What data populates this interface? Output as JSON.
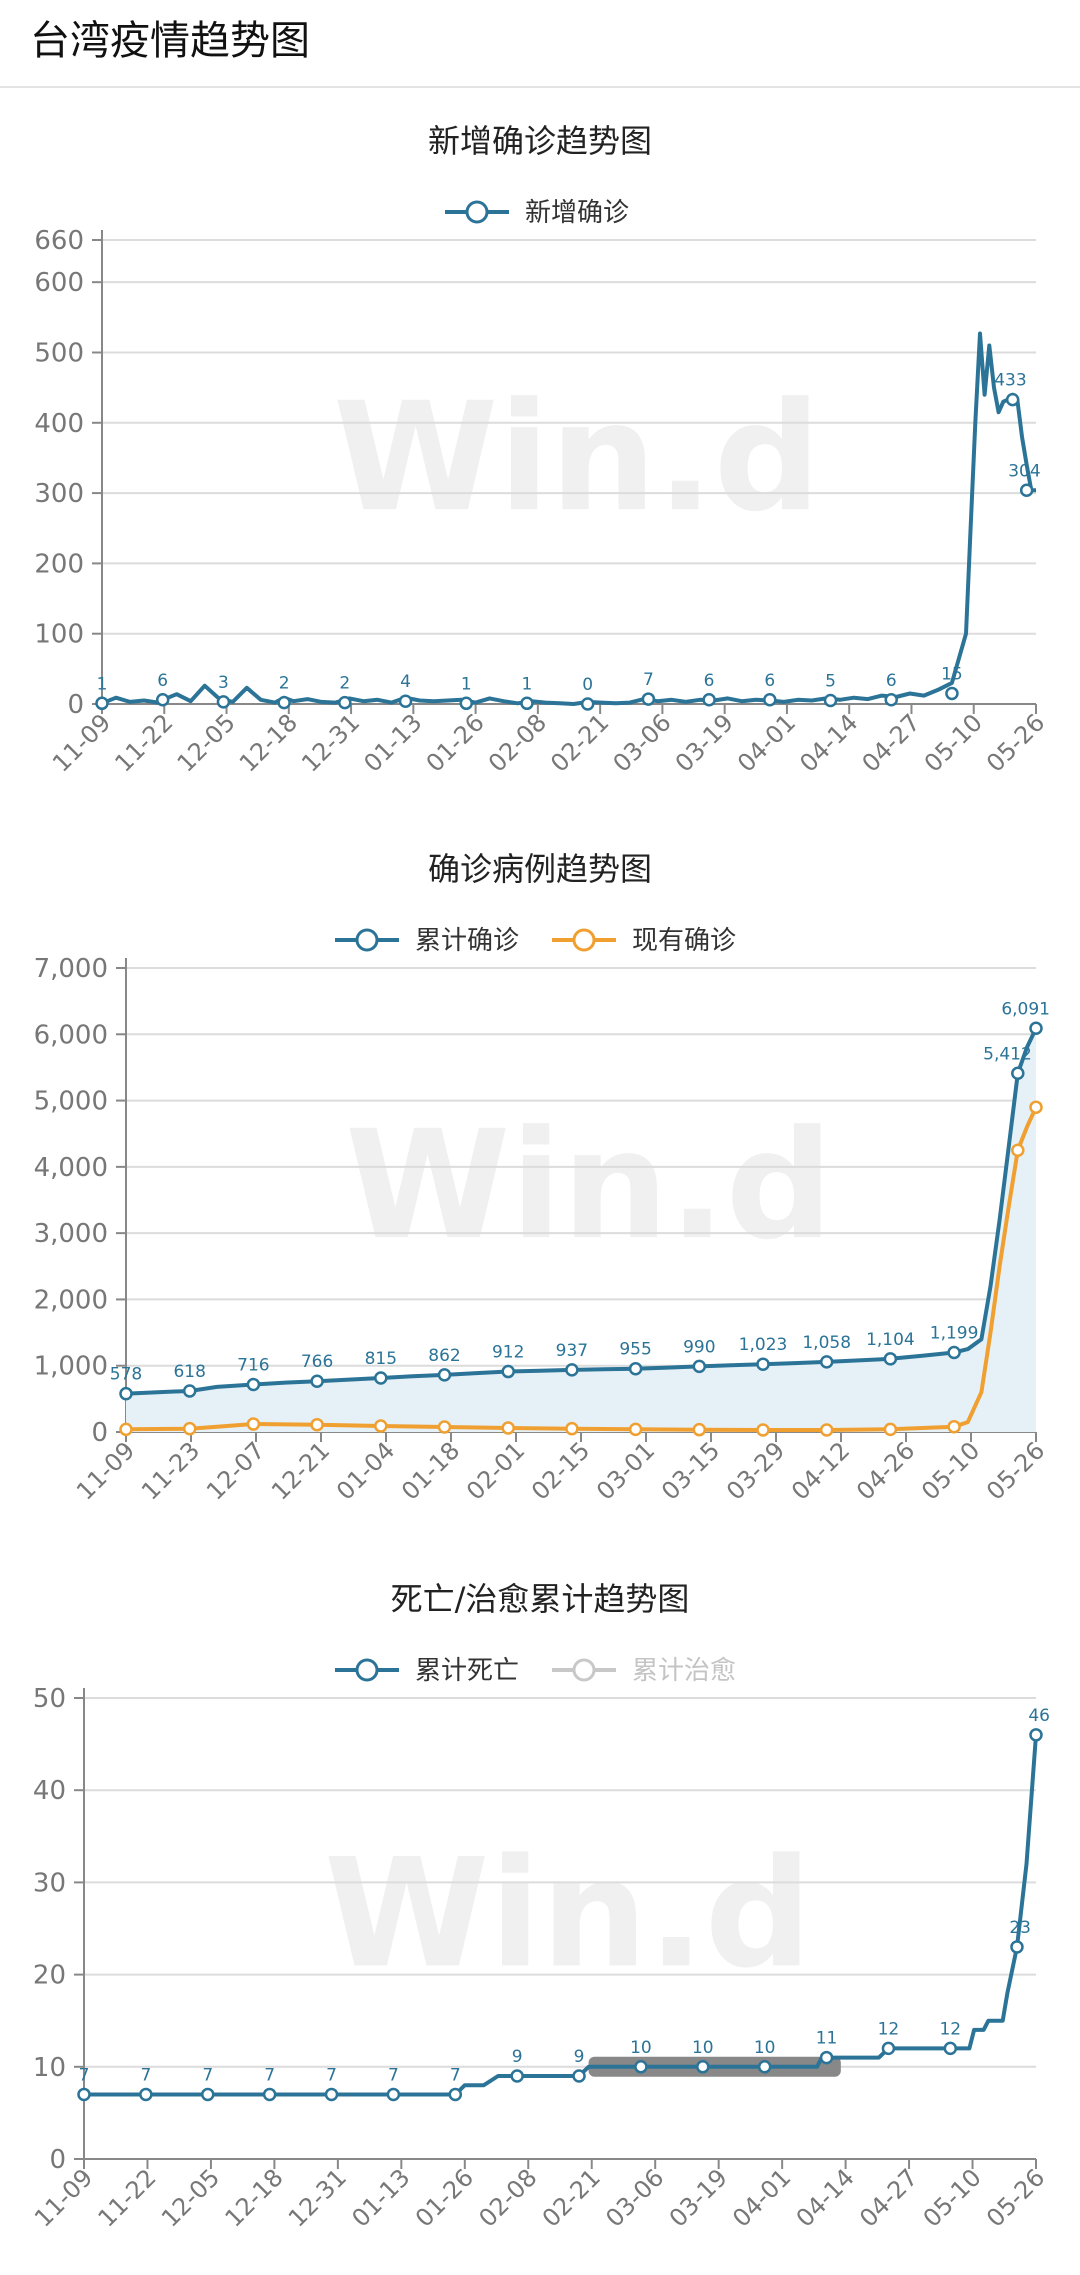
{
  "header": {
    "title": "台湾疫情趋势图"
  },
  "watermark": "Win.d",
  "colors": {
    "blue": "#2b7497",
    "orange": "#f0a030",
    "grey": "#c8c8c8",
    "area": "#e6f0f7",
    "grid": "#dcdcdc"
  },
  "chart_data": [
    {
      "type": "line",
      "title": "新增确诊趋势图",
      "legend": {
        "placement": "top-center",
        "entries": [
          {
            "name": "新增确诊",
            "color": "#2b7497",
            "active": true
          }
        ]
      },
      "x_ticks": [
        "11-09",
        "11-22",
        "12-05",
        "12-18",
        "12-31",
        "01-13",
        "01-26",
        "02-08",
        "02-21",
        "03-06",
        "03-19",
        "04-01",
        "04-14",
        "04-27",
        "05-10",
        "05-26"
      ],
      "y_ticks": [
        0,
        100,
        200,
        300,
        400,
        500,
        600,
        660
      ],
      "ylim": [
        0,
        660
      ],
      "grid": true,
      "series": [
        {
          "name": "新增确诊",
          "color": "#2b7497",
          "x": [
            0,
            3,
            6,
            9,
            12,
            13,
            16,
            19,
            22,
            25,
            28,
            31,
            34,
            37,
            39,
            41,
            44,
            47,
            50,
            53,
            56,
            59,
            62,
            65,
            68,
            71,
            74,
            77,
            80,
            83,
            86,
            89,
            92,
            95,
            98,
            101,
            104,
            107,
            110,
            113,
            116,
            119,
            122,
            125,
            128,
            131,
            134,
            137,
            140,
            143,
            146,
            149,
            152,
            155,
            158,
            161,
            164,
            167,
            170,
            173,
            176,
            179,
            182,
            185,
            186,
            187,
            188,
            189,
            190,
            191,
            192,
            193,
            194,
            195,
            196,
            197,
            198,
            199,
            200
          ],
          "values": [
            1,
            9,
            3,
            5,
            2,
            6,
            14,
            4,
            26,
            8,
            3,
            23,
            6,
            2,
            9,
            4,
            7,
            3,
            2,
            8,
            4,
            6,
            2,
            9,
            5,
            4,
            5,
            6,
            2,
            8,
            4,
            1,
            4,
            2,
            1,
            0,
            3,
            2,
            1,
            2,
            7,
            4,
            6,
            3,
            6,
            5,
            8,
            4,
            6,
            5,
            3,
            6,
            5,
            8,
            6,
            9,
            7,
            12,
            10,
            15,
            12,
            20,
            30,
            100,
            250,
            400,
            527,
            440,
            510,
            450,
            415,
            430,
            433,
            440,
            433,
            380,
            340,
            304,
            304
          ],
          "points": [
            {
              "x": 0,
              "y": 1,
              "label": "1"
            },
            {
              "x": 13,
              "y": 6,
              "label": "6"
            },
            {
              "x": 26,
              "y": 3,
              "label": "3"
            },
            {
              "x": 39,
              "y": 2,
              "label": "2"
            },
            {
              "x": 52,
              "y": 2,
              "label": "2"
            },
            {
              "x": 65,
              "y": 4,
              "label": "4"
            },
            {
              "x": 78,
              "y": 1,
              "label": "1"
            },
            {
              "x": 91,
              "y": 1,
              "label": "1"
            },
            {
              "x": 104,
              "y": 0,
              "label": "0"
            },
            {
              "x": 117,
              "y": 7,
              "label": "7"
            },
            {
              "x": 130,
              "y": 6,
              "label": "6"
            },
            {
              "x": 143,
              "y": 6,
              "label": "6"
            },
            {
              "x": 156,
              "y": 5,
              "label": "5"
            },
            {
              "x": 169,
              "y": 6,
              "label": "6"
            },
            {
              "x": 182,
              "y": 15,
              "label": "15"
            },
            {
              "x": 195,
              "y": 433,
              "label": "433"
            },
            {
              "x": 198,
              "y": 304,
              "label": "304"
            }
          ]
        }
      ]
    },
    {
      "type": "area",
      "title": "确诊病例趋势图",
      "legend": {
        "placement": "top-center",
        "entries": [
          {
            "name": "累计确诊",
            "color": "#2b7497",
            "active": true
          },
          {
            "name": "现有确诊",
            "color": "#f0a030",
            "active": true
          }
        ]
      },
      "x_ticks": [
        "11-09",
        "11-23",
        "12-07",
        "12-21",
        "01-04",
        "01-18",
        "02-01",
        "02-15",
        "03-01",
        "03-15",
        "03-29",
        "04-12",
        "04-26",
        "05-10",
        "05-26"
      ],
      "y_ticks": [
        0,
        1000,
        2000,
        3000,
        4000,
        5000,
        6000,
        7000
      ],
      "ylim": [
        0,
        7000
      ],
      "grid": true,
      "series": [
        {
          "name": "累计确诊",
          "color": "#2b7497",
          "fill": true,
          "x": [
            0,
            10,
            14,
            20,
            28,
            35,
            42,
            49,
            56,
            63,
            70,
            77,
            84,
            91,
            98,
            105,
            112,
            119,
            126,
            133,
            140,
            147,
            154,
            161,
            168,
            175,
            182,
            185,
            188,
            190,
            192,
            194,
            196,
            198,
            200
          ],
          "values": [
            578,
            610,
            618,
            680,
            716,
            745,
            766,
            790,
            815,
            840,
            862,
            888,
            912,
            925,
            937,
            946,
            955,
            972,
            990,
            1006,
            1023,
            1040,
            1058,
            1080,
            1104,
            1150,
            1199,
            1250,
            1400,
            2200,
            3200,
            4300,
            5412,
            5800,
            6091
          ],
          "points": [
            {
              "x": 0,
              "y": 578,
              "label": "578"
            },
            {
              "x": 14,
              "y": 618,
              "label": "618"
            },
            {
              "x": 28,
              "y": 716,
              "label": "716"
            },
            {
              "x": 42,
              "y": 766,
              "label": "766"
            },
            {
              "x": 56,
              "y": 815,
              "label": "815"
            },
            {
              "x": 70,
              "y": 862,
              "label": "862"
            },
            {
              "x": 84,
              "y": 912,
              "label": "912"
            },
            {
              "x": 98,
              "y": 937,
              "label": "937"
            },
            {
              "x": 112,
              "y": 955,
              "label": "955"
            },
            {
              "x": 126,
              "y": 990,
              "label": "990"
            },
            {
              "x": 140,
              "y": 1023,
              "label": "1,023"
            },
            {
              "x": 154,
              "y": 1058,
              "label": "1,058"
            },
            {
              "x": 168,
              "y": 1104,
              "label": "1,104"
            },
            {
              "x": 182,
              "y": 1199,
              "label": "1,199"
            },
            {
              "x": 196,
              "y": 5412,
              "label": "5,412"
            },
            {
              "x": 200,
              "y": 6091,
              "label": "6,091"
            }
          ]
        },
        {
          "name": "现有确诊",
          "color": "#f0a030",
          "fill": false,
          "x": [
            0,
            14,
            20,
            28,
            42,
            56,
            70,
            84,
            98,
            112,
            126,
            140,
            154,
            168,
            182,
            185,
            188,
            190,
            192,
            194,
            196,
            198,
            200
          ],
          "values": [
            40,
            50,
            80,
            120,
            110,
            90,
            75,
            60,
            50,
            40,
            35,
            30,
            30,
            40,
            80,
            150,
            600,
            1500,
            2500,
            3400,
            4250,
            4600,
            4900
          ],
          "points": [
            {
              "x": 0,
              "y": 40
            },
            {
              "x": 14,
              "y": 50
            },
            {
              "x": 28,
              "y": 120
            },
            {
              "x": 42,
              "y": 110
            },
            {
              "x": 56,
              "y": 90
            },
            {
              "x": 70,
              "y": 75
            },
            {
              "x": 84,
              "y": 60
            },
            {
              "x": 98,
              "y": 50
            },
            {
              "x": 112,
              "y": 40
            },
            {
              "x": 126,
              "y": 35
            },
            {
              "x": 140,
              "y": 30
            },
            {
              "x": 154,
              "y": 30
            },
            {
              "x": 168,
              "y": 40
            },
            {
              "x": 182,
              "y": 80
            },
            {
              "x": 196,
              "y": 4250
            },
            {
              "x": 200,
              "y": 4900
            }
          ]
        }
      ]
    },
    {
      "type": "line",
      "title": "死亡/治愈累计趋势图",
      "legend": {
        "placement": "top-center",
        "entries": [
          {
            "name": "累计死亡",
            "color": "#2b7497",
            "active": true
          },
          {
            "name": "累计治愈",
            "color": "#c8c8c8",
            "active": false
          }
        ]
      },
      "x_ticks": [
        "11-09",
        "11-22",
        "12-05",
        "12-18",
        "12-31",
        "01-13",
        "01-26",
        "02-08",
        "02-21",
        "03-06",
        "03-19",
        "04-01",
        "04-14",
        "04-27",
        "05-10",
        "05-26"
      ],
      "y_ticks": [
        0,
        10,
        20,
        30,
        40,
        50
      ],
      "ylim": [
        0,
        50
      ],
      "grid": true,
      "series": [
        {
          "name": "累计死亡",
          "color": "#2b7497",
          "x": [
            0,
            13,
            26,
            39,
            52,
            65,
            78,
            80,
            84,
            87,
            90,
            91,
            104,
            106,
            117,
            130,
            143,
            154,
            155,
            156,
            167,
            169,
            182,
            183,
            186,
            187,
            189,
            190,
            193,
            194,
            196,
            198,
            200
          ],
          "values": [
            7,
            7,
            7,
            7,
            7,
            7,
            7,
            8,
            8,
            9,
            9,
            9,
            9,
            10,
            10,
            10,
            10,
            10,
            11,
            11,
            11,
            12,
            12,
            12,
            12,
            14,
            14,
            15,
            15,
            18,
            23,
            32,
            46
          ],
          "points": [
            {
              "x": 0,
              "y": 7,
              "label": "7"
            },
            {
              "x": 13,
              "y": 7,
              "label": "7"
            },
            {
              "x": 26,
              "y": 7,
              "label": "7"
            },
            {
              "x": 39,
              "y": 7,
              "label": "7"
            },
            {
              "x": 52,
              "y": 7,
              "label": "7"
            },
            {
              "x": 65,
              "y": 7,
              "label": "7"
            },
            {
              "x": 78,
              "y": 7,
              "label": "7"
            },
            {
              "x": 91,
              "y": 9,
              "label": "9"
            },
            {
              "x": 104,
              "y": 9,
              "label": "9"
            },
            {
              "x": 117,
              "y": 10,
              "label": "10"
            },
            {
              "x": 130,
              "y": 10,
              "label": "10"
            },
            {
              "x": 143,
              "y": 10,
              "label": "10"
            },
            {
              "x": 156,
              "y": 11,
              "label": "11"
            },
            {
              "x": 169,
              "y": 12,
              "label": "12"
            },
            {
              "x": 182,
              "y": 12,
              "label": "12"
            },
            {
              "x": 196,
              "y": 23,
              "label": "23"
            },
            {
              "x": 200,
              "y": 46,
              "label": "46"
            }
          ]
        }
      ],
      "highlight_band": {
        "x_start": 106,
        "x_end": 159,
        "y": 10,
        "color": "#888888"
      }
    }
  ]
}
